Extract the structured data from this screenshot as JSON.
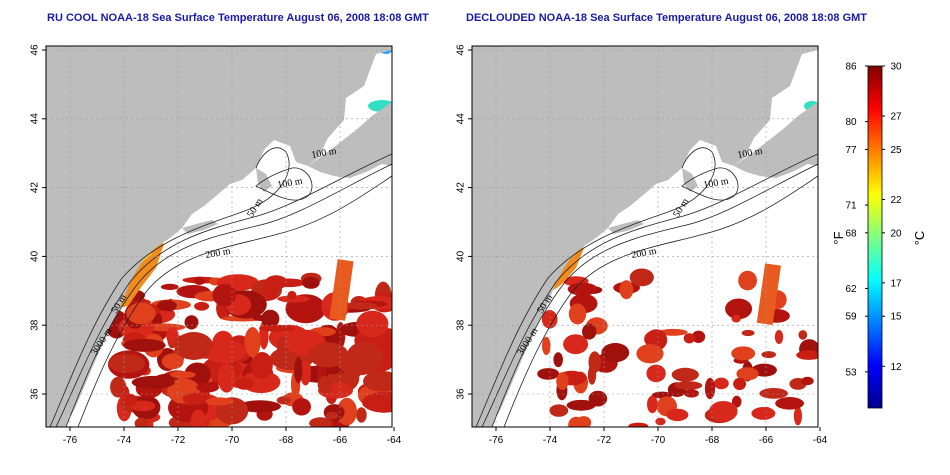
{
  "titles": {
    "left": "RU COOL NOAA-18 Sea Surface Temperature August 06, 2008 18:08 GMT",
    "right": "DECLOUDED NOAA-18 Sea Surface Temperature August 06, 2008 18:08 GMT"
  },
  "axes": {
    "x_ticks": [
      "-76",
      "-74",
      "-72",
      "-70",
      "-68",
      "-66",
      "-64"
    ],
    "y_ticks": [
      "46",
      "44",
      "42",
      "40",
      "38",
      "36"
    ]
  },
  "contours": {
    "left": [
      "100 m",
      "100 m",
      "50 m",
      "200 m",
      "50 m",
      "3000 m"
    ],
    "right": [
      "100 m",
      "100 m",
      "50 m",
      "200 m",
      "50 m",
      "3000 m"
    ]
  },
  "colorbar": {
    "fahrenheit_ticks": [
      "86",
      "80",
      "77",
      "71",
      "68",
      "62",
      "59",
      "53"
    ],
    "celsius_ticks": [
      "30",
      "27",
      "25",
      "22",
      "20",
      "17",
      "15",
      "12"
    ],
    "unit_f": "°F",
    "unit_c": "°C",
    "colors": [
      "#00008f",
      "#0000ff",
      "#0080ff",
      "#00ffff",
      "#80ff80",
      "#ffff00",
      "#ff8000",
      "#ff0000",
      "#800000"
    ]
  },
  "colors": {
    "land": "#bdbdbd",
    "ocean": "#ffffff",
    "warm_sst": "#c81e14",
    "shelf_sst": "#f08c1e"
  }
}
